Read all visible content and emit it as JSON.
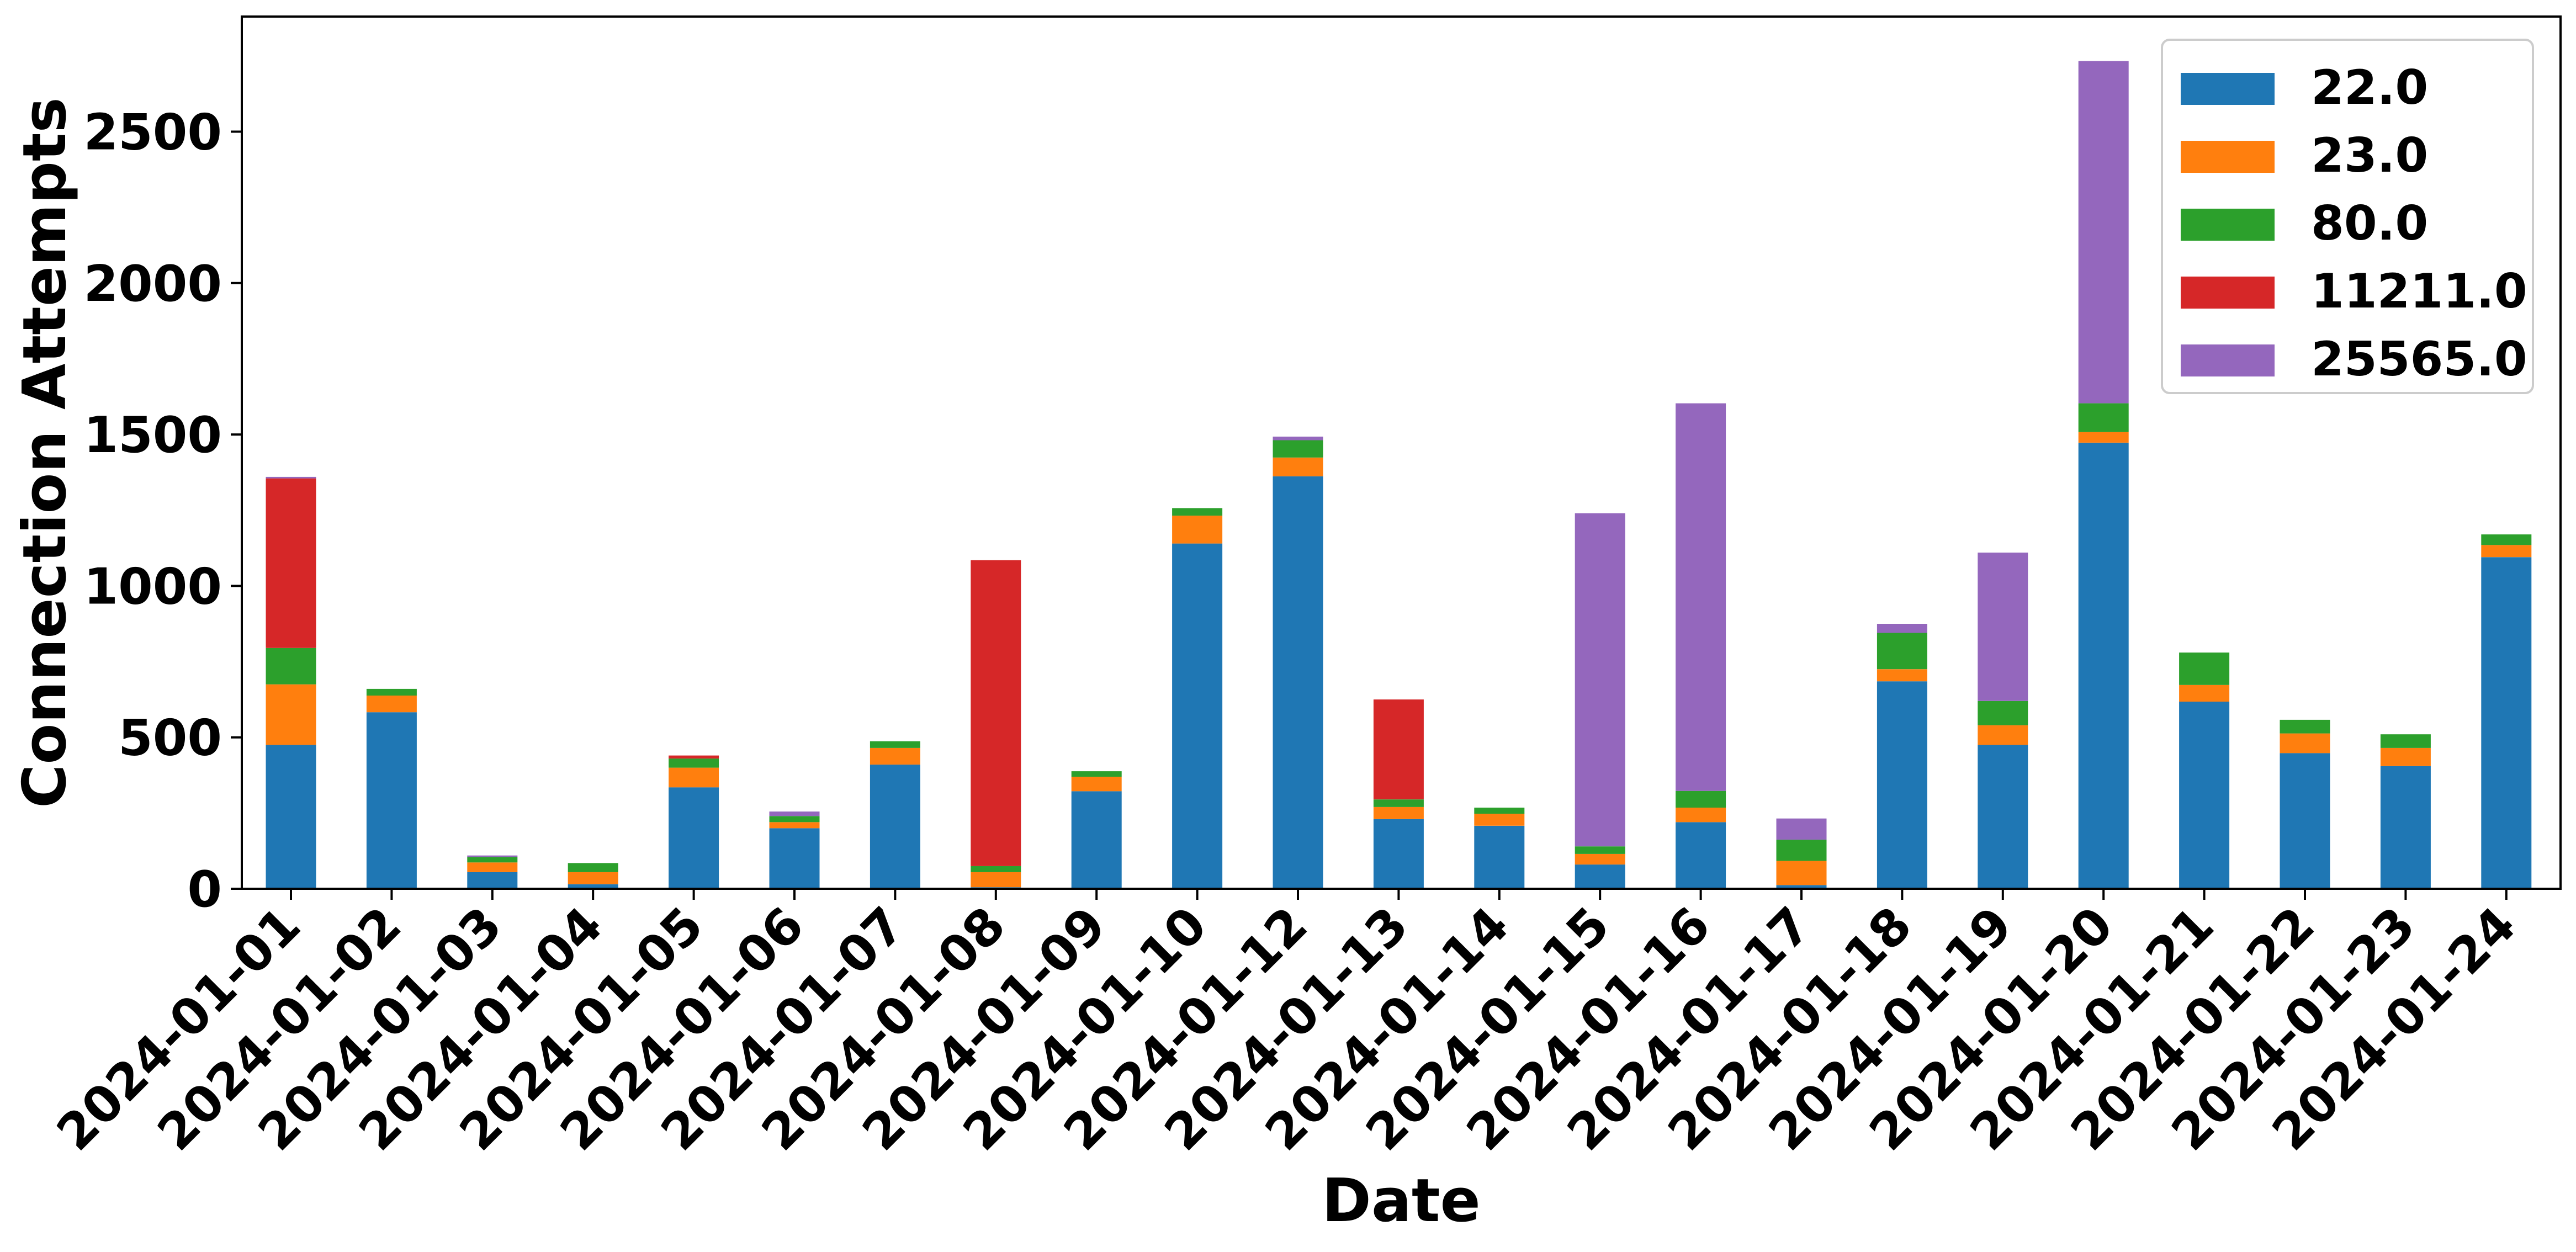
{
  "chart_data": {
    "type": "bar",
    "stacked": true,
    "title": "",
    "xlabel": "Date",
    "ylabel": "Connection Attempts",
    "ylim": [
      0,
      2880
    ],
    "yticks": [
      0,
      500,
      1000,
      1500,
      2000,
      2500
    ],
    "grid": false,
    "legend": {
      "position": "top-right"
    },
    "categories": [
      "2024-01-01",
      "2024-01-02",
      "2024-01-03",
      "2024-01-04",
      "2024-01-05",
      "2024-01-06",
      "2024-01-07",
      "2024-01-08",
      "2024-01-09",
      "2024-01-10",
      "2024-01-12",
      "2024-01-13",
      "2024-01-14",
      "2024-01-15",
      "2024-01-16",
      "2024-01-17",
      "2024-01-18",
      "2024-01-19",
      "2024-01-20",
      "2024-01-21",
      "2024-01-22",
      "2024-01-23",
      "2024-01-24"
    ],
    "series": [
      {
        "name": "22.0",
        "color": "#1f77b4",
        "values": [
          475,
          583,
          55,
          15,
          335,
          200,
          410,
          5,
          322,
          1140,
          1362,
          230,
          208,
          80,
          220,
          12,
          685,
          475,
          1473,
          618,
          448,
          405,
          1095
        ]
      },
      {
        "name": "23.0",
        "color": "#ff7f0e",
        "values": [
          200,
          55,
          32,
          40,
          65,
          20,
          55,
          50,
          48,
          92,
          62,
          40,
          40,
          35,
          48,
          80,
          40,
          65,
          35,
          55,
          65,
          60,
          40
        ]
      },
      {
        "name": "80.0",
        "color": "#2ca02c",
        "values": [
          120,
          22,
          18,
          30,
          30,
          20,
          22,
          20,
          18,
          25,
          57,
          25,
          20,
          25,
          55,
          70,
          120,
          80,
          95,
          107,
          45,
          45,
          35
        ]
      },
      {
        "name": "11211.0",
        "color": "#d62728",
        "values": [
          560,
          0,
          0,
          0,
          10,
          0,
          0,
          1010,
          0,
          0,
          0,
          330,
          0,
          0,
          0,
          0,
          0,
          0,
          0,
          0,
          0,
          0,
          0
        ]
      },
      {
        "name": "25565.0",
        "color": "#9467bd",
        "values": [
          5,
          0,
          5,
          0,
          0,
          15,
          0,
          0,
          0,
          0,
          12,
          0,
          0,
          1100,
          1280,
          70,
          30,
          490,
          1130,
          0,
          0,
          0,
          0
        ]
      }
    ]
  }
}
